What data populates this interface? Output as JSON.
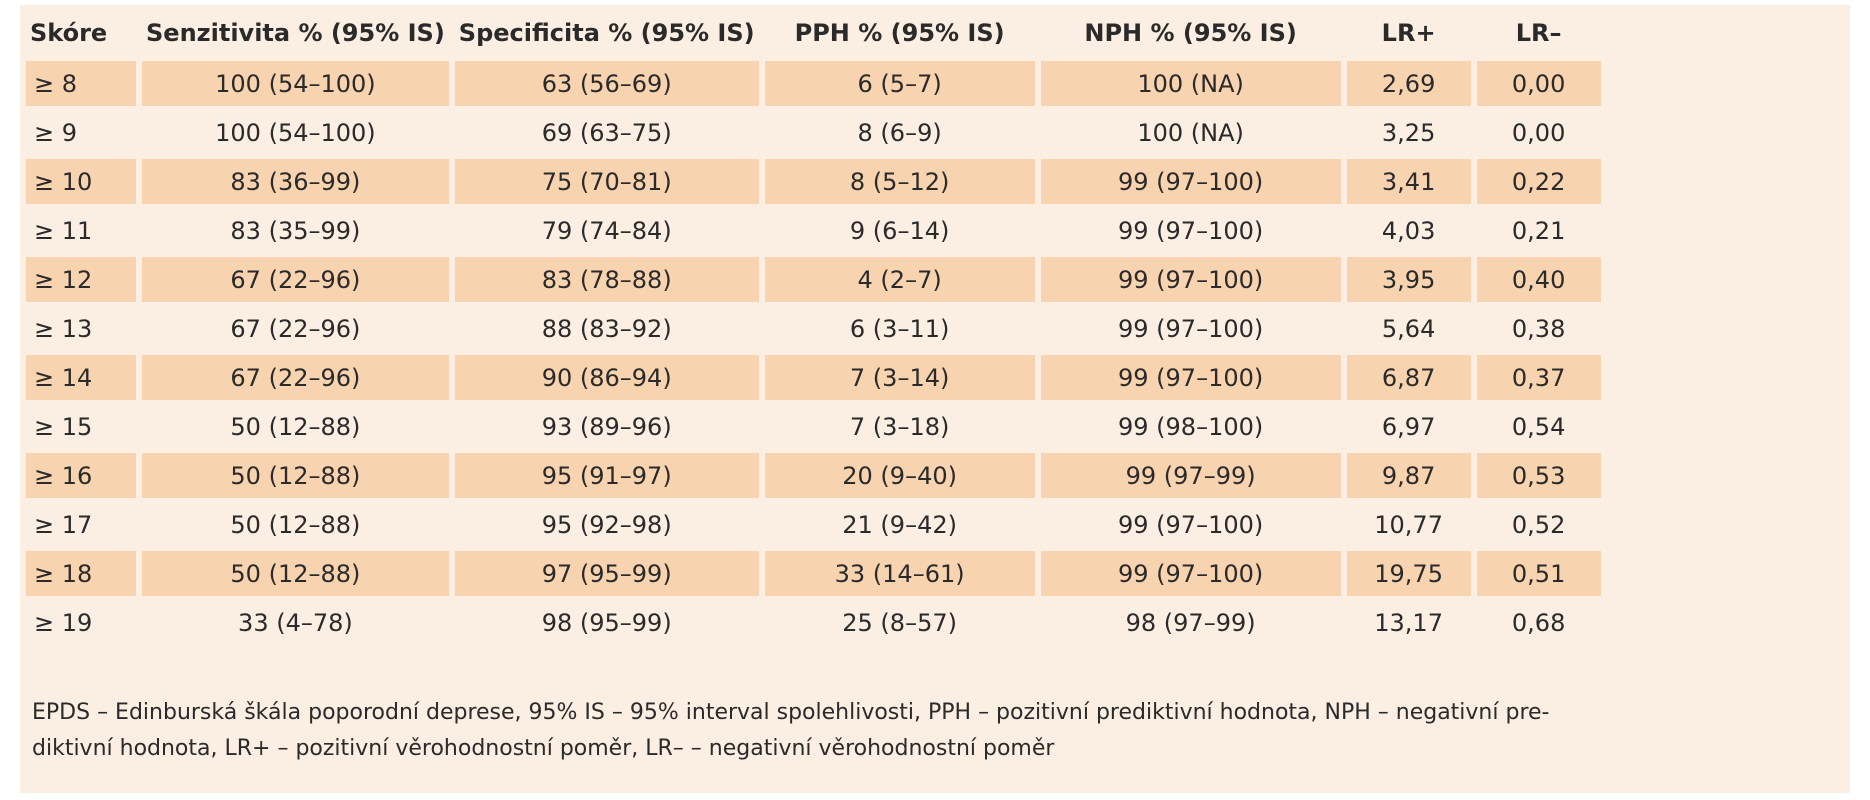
{
  "chart_data": {
    "type": "table",
    "columns": [
      "Skóre",
      "Senzitivita % (95% IS)",
      "Specificita % (95% IS)",
      "PPH % (95% IS)",
      "NPH % (95% IS)",
      "LR+",
      "LR–"
    ],
    "rows": [
      [
        "≥ 8",
        "100 (54–100)",
        "63 (56–69)",
        "6 (5–7)",
        "100 (NA)",
        "2,69",
        "0,00"
      ],
      [
        "≥ 9",
        "100 (54–100)",
        "69 (63–75)",
        "8 (6–9)",
        "100 (NA)",
        "3,25",
        "0,00"
      ],
      [
        "≥ 10",
        "83 (36–99)",
        "75 (70–81)",
        "8 (5–12)",
        "99 (97–100)",
        "3,41",
        "0,22"
      ],
      [
        "≥ 11",
        "83 (35–99)",
        "79 (74–84)",
        "9 (6–14)",
        "99 (97–100)",
        "4,03",
        "0,21"
      ],
      [
        "≥ 12",
        "67 (22–96)",
        "83 (78–88)",
        "4 (2–7)",
        "99 (97–100)",
        "3,95",
        "0,40"
      ],
      [
        "≥ 13",
        "67 (22–96)",
        "88 (83–92)",
        "6 (3–11)",
        "99 (97–100)",
        "5,64",
        "0,38"
      ],
      [
        "≥ 14",
        "67 (22–96)",
        "90 (86–94)",
        "7 (3–14)",
        "99 (97–100)",
        "6,87",
        "0,37"
      ],
      [
        "≥ 15",
        "50 (12–88)",
        "93 (89–96)",
        "7 (3–18)",
        "99 (98–100)",
        "6,97",
        "0,54"
      ],
      [
        "≥ 16",
        "50 (12–88)",
        "95 (91–97)",
        "20 (9–40)",
        "99 (97–99)",
        "9,87",
        "0,53"
      ],
      [
        "≥ 17",
        "50 (12–88)",
        "95 (92–98)",
        "21 (9–42)",
        "99 (97–100)",
        "10,77",
        "0,52"
      ],
      [
        "≥ 18",
        "50 (12–88)",
        "97 (95–99)",
        "33 (14–61)",
        "99 (97–100)",
        "19,75",
        "0,51"
      ],
      [
        "≥ 19",
        "33 (4–78)",
        "98 (95–99)",
        "25 (8–57)",
        "98 (97–99)",
        "13,17",
        "0,68"
      ]
    ]
  },
  "footnote": {
    "line1": "EPDS – Edinburská škála poporodní deprese, 95% IS – 95% interval spolehlivosti, PPH – pozitivní prediktivní hodnota, NPH – negativní pre-",
    "line2": "diktivní hodnota, LR+ – pozitivní věrohodnostní poměr, LR– – negativní věrohodnostní poměr"
  },
  "colors": {
    "panel_background": "#fbeee2",
    "row_highlight": "#f8d3b0",
    "text": "#2a2a2a"
  }
}
